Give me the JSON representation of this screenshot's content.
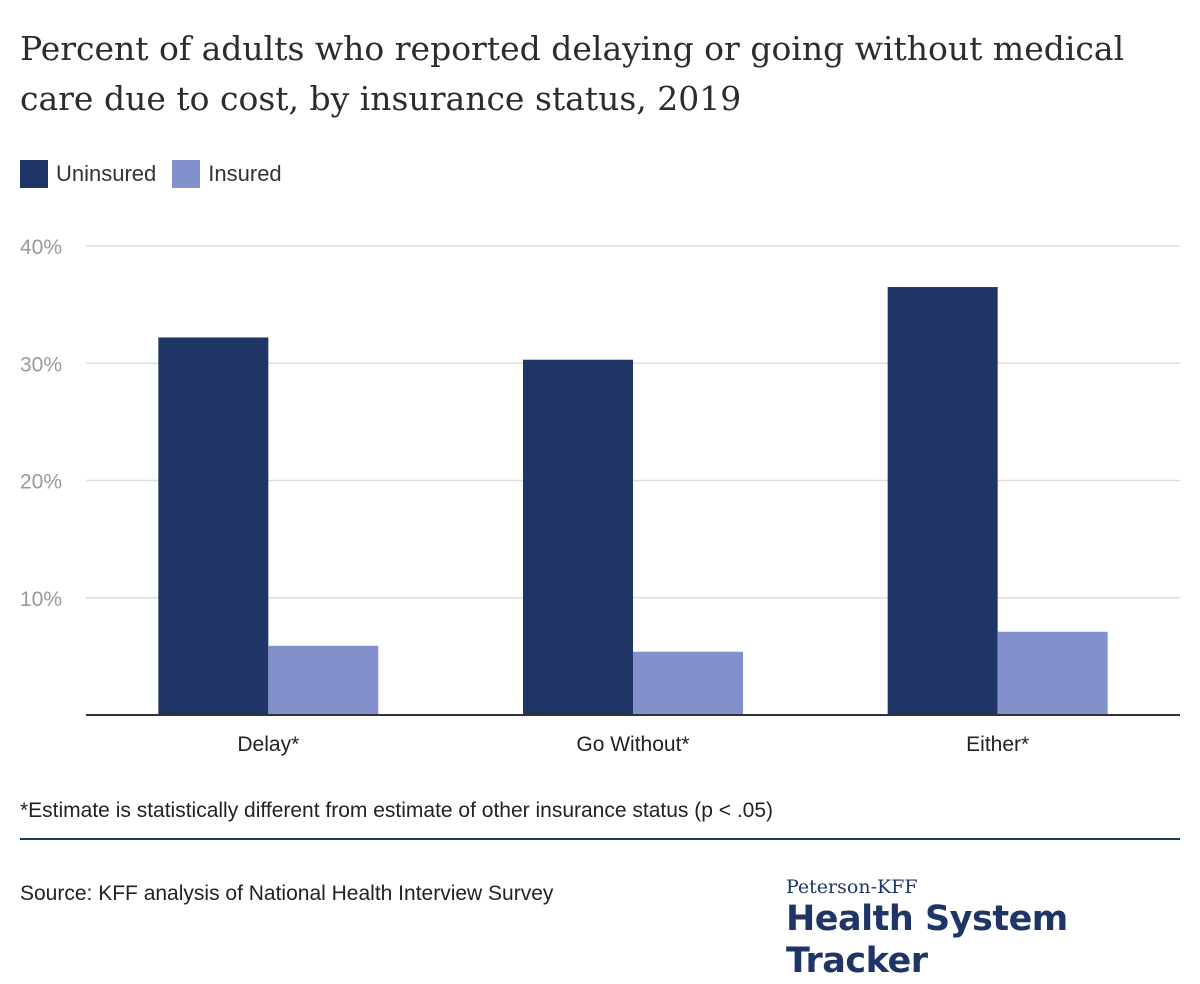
{
  "colors": {
    "uninsured": "#1f3566",
    "insured": "#8290cb",
    "grid": "#dddddd",
    "axis": "#333333",
    "tick_text": "#9a9a9a",
    "category_text": "#222222"
  },
  "chart_data": {
    "type": "bar",
    "title": "Percent of adults who reported delaying or going without medical care due to cost, by insurance status, 2019",
    "categories": [
      "Delay*",
      "Go Without*",
      "Either*"
    ],
    "series": [
      {
        "name": "Uninsured",
        "values": [
          32.2,
          30.3,
          36.5
        ]
      },
      {
        "name": "Insured",
        "values": [
          5.9,
          5.4,
          7.1
        ]
      }
    ],
    "ylim": [
      0,
      40
    ],
    "yticks": [
      10,
      20,
      30,
      40
    ],
    "ytick_labels": [
      "10%",
      "20%",
      "30%",
      "40%"
    ],
    "grid": true,
    "legend_position": "top-left",
    "xlabel": "",
    "ylabel": ""
  },
  "footnote": "*Estimate is statistically different from estimate of other insurance status (p < .05)",
  "source": "Source: KFF analysis of National Health Interview Survey",
  "brand": {
    "small": "Peterson-KFF",
    "large": "Health System Tracker"
  }
}
